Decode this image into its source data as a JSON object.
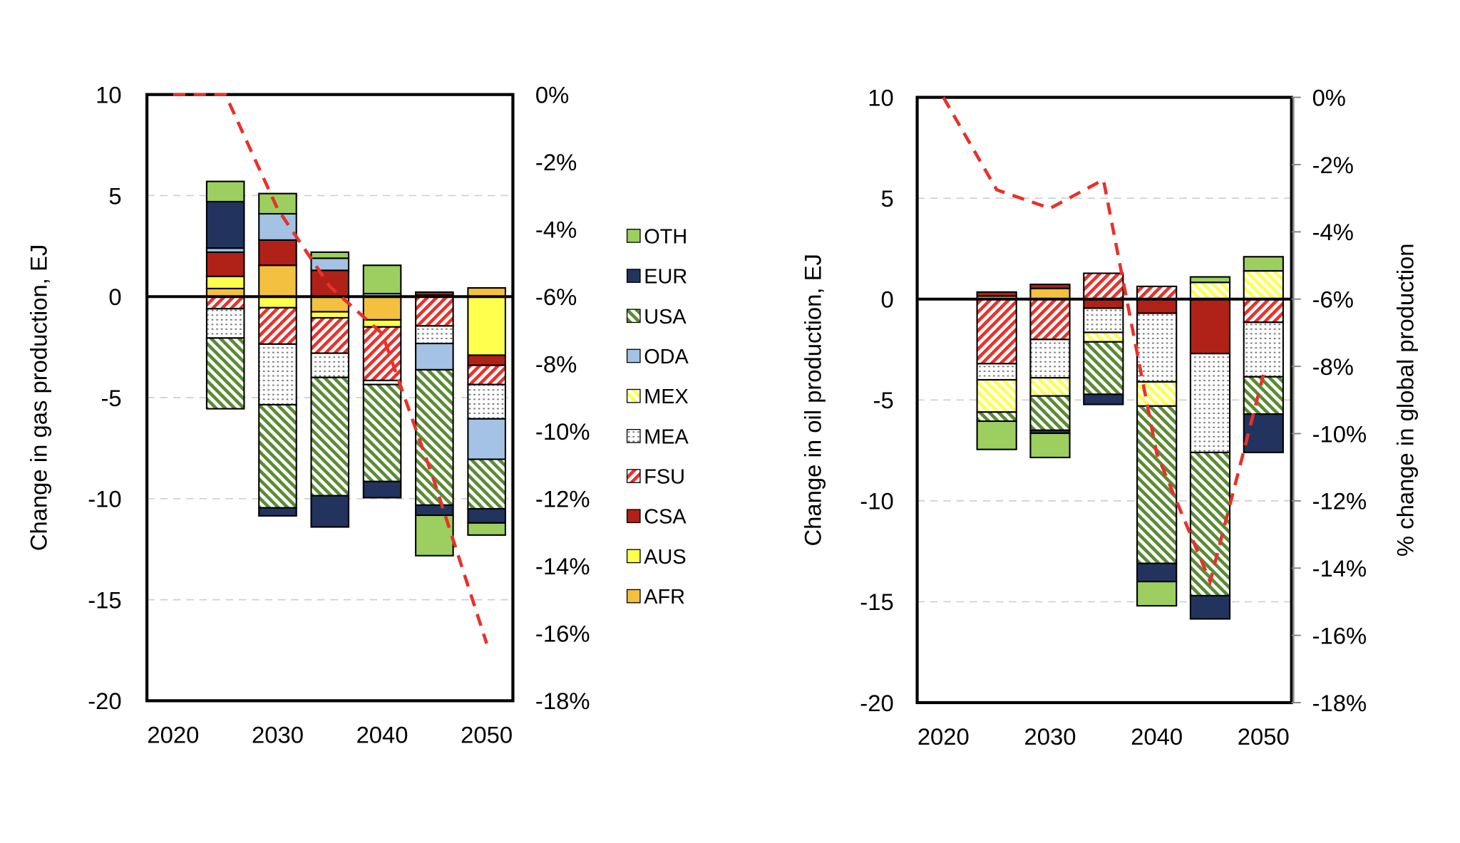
{
  "legend": [
    {
      "key": "OTH",
      "label": "OTH",
      "color": "#9ccf5f",
      "pattern": "solid"
    },
    {
      "key": "EUR",
      "label": "EUR",
      "color": "#22335e",
      "pattern": "solid"
    },
    {
      "key": "USA",
      "label": "USA",
      "color": "#5a8a32",
      "pattern": "stripes-green"
    },
    {
      "key": "ODA",
      "label": "ODA",
      "color": "#a4c2e3",
      "pattern": "solid"
    },
    {
      "key": "MEX",
      "label": "MEX",
      "color": "#ffff4d",
      "pattern": "stripes-yellow"
    },
    {
      "key": "MEA",
      "label": "MEA",
      "color": "#888888",
      "pattern": "dots"
    },
    {
      "key": "FSU",
      "label": "FSU",
      "color": "#e8312a",
      "pattern": "stripes-red"
    },
    {
      "key": "CSA",
      "label": "CSA",
      "color": "#b02118",
      "pattern": "solid"
    },
    {
      "key": "AUS",
      "label": "AUS",
      "color": "#ffff4d",
      "pattern": "solid"
    },
    {
      "key": "AFR",
      "label": "AFR",
      "color": "#f4c040",
      "pattern": "solid"
    }
  ],
  "line_color": "#e8312a",
  "chart_data": [
    {
      "type": "bar",
      "stacked": true,
      "ylabel": "Change in gas production, EJ",
      "y2label": "",
      "ylim": [
        -20,
        10
      ],
      "yticks": [
        10,
        5,
        0,
        -5,
        -10,
        -15,
        -20
      ],
      "y2lim": [
        -18,
        0
      ],
      "y2ticks": [
        "0%",
        "-2%",
        "-4%",
        "-6%",
        "-8%",
        "-10%",
        "-12%",
        "-14%",
        "-16%",
        "-18%"
      ],
      "xlim": [
        2020,
        2050
      ],
      "xticks": [
        "2020",
        "2030",
        "2040",
        "2050"
      ],
      "grid": "horizontal dashed",
      "categories": [
        2025,
        2030,
        2035,
        2040,
        2045,
        2050
      ],
      "stacks": [
        [
          [
            "AFR",
            0.4
          ],
          [
            "AUS",
            0.6
          ],
          [
            "CSA",
            1.2
          ],
          [
            "ODA",
            0.2
          ],
          [
            "EUR",
            2.3
          ],
          [
            "OTH",
            1.0
          ],
          [
            "FSU",
            -0.6
          ],
          [
            "MEA",
            -1.45
          ],
          [
            "USA",
            -3.5
          ]
        ],
        [
          [
            "AFR",
            1.55
          ],
          [
            "CSA",
            1.25
          ],
          [
            "ODA",
            1.3
          ],
          [
            "OTH",
            1.0
          ],
          [
            "AUS",
            -0.55
          ],
          [
            "FSU",
            -1.8
          ],
          [
            "MEA",
            -3.0
          ],
          [
            "USA",
            -5.1
          ],
          [
            "EUR",
            -0.4
          ]
        ],
        [
          [
            "CSA",
            1.3
          ],
          [
            "ODA",
            0.6
          ],
          [
            "OTH",
            0.3
          ],
          [
            "AFR",
            -0.75
          ],
          [
            "AUS",
            -0.3
          ],
          [
            "FSU",
            -1.75
          ],
          [
            "MEA",
            -1.2
          ],
          [
            "USA",
            -5.85
          ],
          [
            "EUR",
            -1.55
          ]
        ],
        [
          [
            "ODA",
            0.15
          ],
          [
            "OTH",
            1.4
          ],
          [
            "AFR",
            -1.15
          ],
          [
            "AUS",
            -0.35
          ],
          [
            "FSU",
            -2.65
          ],
          [
            "MEA",
            -0.2
          ],
          [
            "USA",
            -4.8
          ],
          [
            "EUR",
            -0.8
          ]
        ],
        [
          [
            "AUS",
            0.07
          ],
          [
            "CSA",
            0.15
          ],
          [
            "FSU",
            -1.45
          ],
          [
            "MEA",
            -0.87
          ],
          [
            "ODA",
            -1.3
          ],
          [
            "USA",
            -6.7
          ],
          [
            "EUR",
            -0.5
          ],
          [
            "OTH",
            -2.0
          ]
        ],
        [
          [
            "AFR",
            0.43
          ],
          [
            "AUS",
            -2.9
          ],
          [
            "CSA",
            -0.5
          ],
          [
            "FSU",
            -0.95
          ],
          [
            "MEA",
            -1.7
          ],
          [
            "ODA",
            -2.0
          ],
          [
            "USA",
            -2.45
          ],
          [
            "EUR",
            -0.7
          ],
          [
            "OTH",
            -0.6
          ]
        ]
      ],
      "line": {
        "axis": "secondary",
        "x": [
          2020,
          2025,
          2030,
          2035,
          2040,
          2045,
          2050
        ],
        "y": [
          0,
          0,
          -3.4,
          -5.7,
          -7.1,
          -11.5,
          -16.3
        ]
      }
    },
    {
      "type": "bar",
      "stacked": true,
      "ylabel": "Change in oil production, EJ",
      "y2label": "% change in global production",
      "ylim": [
        -20,
        10
      ],
      "yticks": [
        10,
        5,
        0,
        -5,
        -10,
        -15,
        -20
      ],
      "y2lim": [
        -18,
        0
      ],
      "y2ticks": [
        "0%",
        "-2%",
        "-4%",
        "-6%",
        "-8%",
        "-10%",
        "-12%",
        "-14%",
        "-16%",
        "-18%"
      ],
      "xlim": [
        2020,
        2050
      ],
      "xticks": [
        "2020",
        "2030",
        "2040",
        "2050"
      ],
      "grid": "horizontal dashed",
      "categories": [
        2025,
        2030,
        2035,
        2040,
        2045,
        2050
      ],
      "stacks": [
        [
          [
            "AFR",
            0.15
          ],
          [
            "CSA",
            0.2
          ],
          [
            "FSU",
            -3.2
          ],
          [
            "MEA",
            -0.8
          ],
          [
            "MEX",
            -1.6
          ],
          [
            "USA",
            -0.45
          ],
          [
            "OTH",
            -1.4
          ]
        ],
        [
          [
            "AFR",
            0.53
          ],
          [
            "CSA",
            0.2
          ],
          [
            "FSU",
            -2.0
          ],
          [
            "MEA",
            -1.9
          ],
          [
            "MEX",
            -0.9
          ],
          [
            "USA",
            -1.7
          ],
          [
            "EUR",
            -0.15
          ],
          [
            "OTH",
            -1.2
          ]
        ],
        [
          [
            "FSU",
            1.28
          ],
          [
            "CSA",
            -0.45
          ],
          [
            "MEA",
            -1.2
          ],
          [
            "MEX",
            -0.47
          ],
          [
            "USA",
            -2.6
          ],
          [
            "EUR",
            -0.5
          ]
        ],
        [
          [
            "FSU",
            0.63
          ],
          [
            "CSA",
            -0.7
          ],
          [
            "MEA",
            -3.4
          ],
          [
            "MEX",
            -1.2
          ],
          [
            "USA",
            -7.8
          ],
          [
            "EUR",
            -0.9
          ],
          [
            "OTH",
            -1.2
          ]
        ],
        [
          [
            "MEX",
            0.83
          ],
          [
            "OTH",
            0.27
          ],
          [
            "CSA",
            -2.7
          ],
          [
            "MEA",
            -4.9
          ],
          [
            "USA",
            -7.1
          ],
          [
            "EUR",
            -1.15
          ]
        ],
        [
          [
            "MEX",
            1.4
          ],
          [
            "OTH",
            0.7
          ],
          [
            "FSU",
            -1.15
          ],
          [
            "MEA",
            -2.7
          ],
          [
            "USA",
            -1.85
          ],
          [
            "EUR",
            -1.9
          ]
        ]
      ],
      "line": {
        "axis": "secondary",
        "x": [
          2020,
          2025,
          2030,
          2035,
          2040,
          2045,
          2050
        ],
        "y": [
          0,
          -2.75,
          -3.3,
          -2.45,
          -10.6,
          -14.4,
          -8.25
        ]
      }
    }
  ]
}
